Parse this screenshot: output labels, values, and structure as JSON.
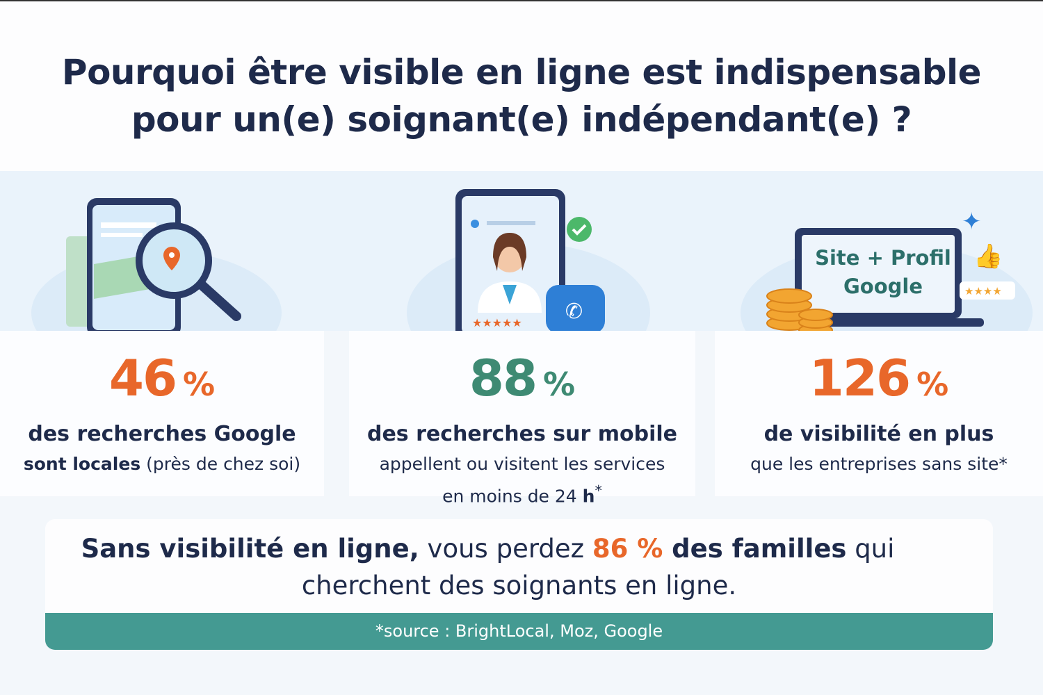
{
  "title": {
    "line1": "Pourquoi être visible en ligne est indispensable",
    "line2": "pour un(e) soignant(e) indépendant(e) ?"
  },
  "stats": [
    {
      "value": "46",
      "unit": "%",
      "line1": "des recherches Google",
      "line2_bold": "sont locales",
      "line2_rest": " (près de chez soi)",
      "color": "#e8672a"
    },
    {
      "value": "88",
      "unit": "%",
      "line1": "des recherches sur mobile",
      "line2": "appellent ou visitent les services",
      "line3": "en moins de 24 ",
      "line3_bold": "h",
      "line3_sup": "*",
      "color": "#3e8a73"
    },
    {
      "value": "126",
      "unit": "%",
      "line1": "de visibilité en plus",
      "line2": "que les entreprises sans site*",
      "color": "#e8672a"
    }
  ],
  "laptop_screen": {
    "line1": "Site + Profil",
    "line2": "Google"
  },
  "bottom": {
    "bold1": "Sans visibilité en ligne,",
    "text1": " vous perdez ",
    "highlight": "86 %",
    "bold2": " des familles",
    "text2": " qui",
    "line2": "cherchent des soignants en ligne.",
    "source": "*source : BrightLocal, Moz, Google"
  },
  "colors": {
    "navy": "#1e2a4a",
    "orange": "#e8672a",
    "green": "#3e8a73",
    "teal": "#449a92"
  }
}
